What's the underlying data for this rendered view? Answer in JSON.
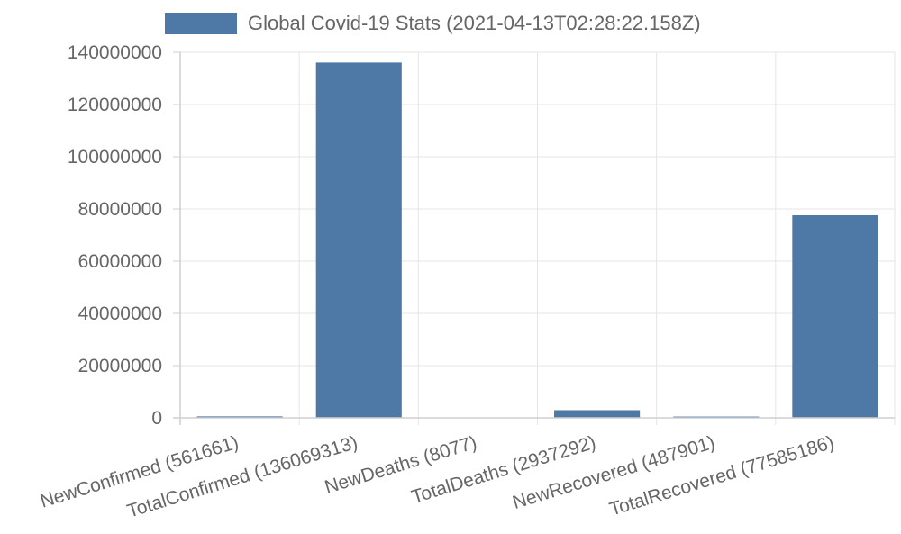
{
  "chart_data": {
    "type": "bar",
    "legend": {
      "position": "top",
      "label": "Global Covid-19 Stats (2021-04-13T02:28:22.158Z)"
    },
    "categories": [
      "NewConfirmed (561661)",
      "TotalConfirmed (136069313)",
      "NewDeaths (8077)",
      "TotalDeaths (2937292)",
      "NewRecovered (487901)",
      "TotalRecovered (77585186)"
    ],
    "series": [
      {
        "name": "Global Covid-19 Stats (2021-04-13T02:28:22.158Z)",
        "values": [
          561661,
          136069313,
          8077,
          2937292,
          487901,
          77585186
        ],
        "color": "#4e79a7"
      }
    ],
    "ylim": [
      0,
      140000000
    ],
    "yticks": [
      0,
      20000000,
      40000000,
      60000000,
      80000000,
      100000000,
      120000000,
      140000000
    ],
    "grid": true
  }
}
